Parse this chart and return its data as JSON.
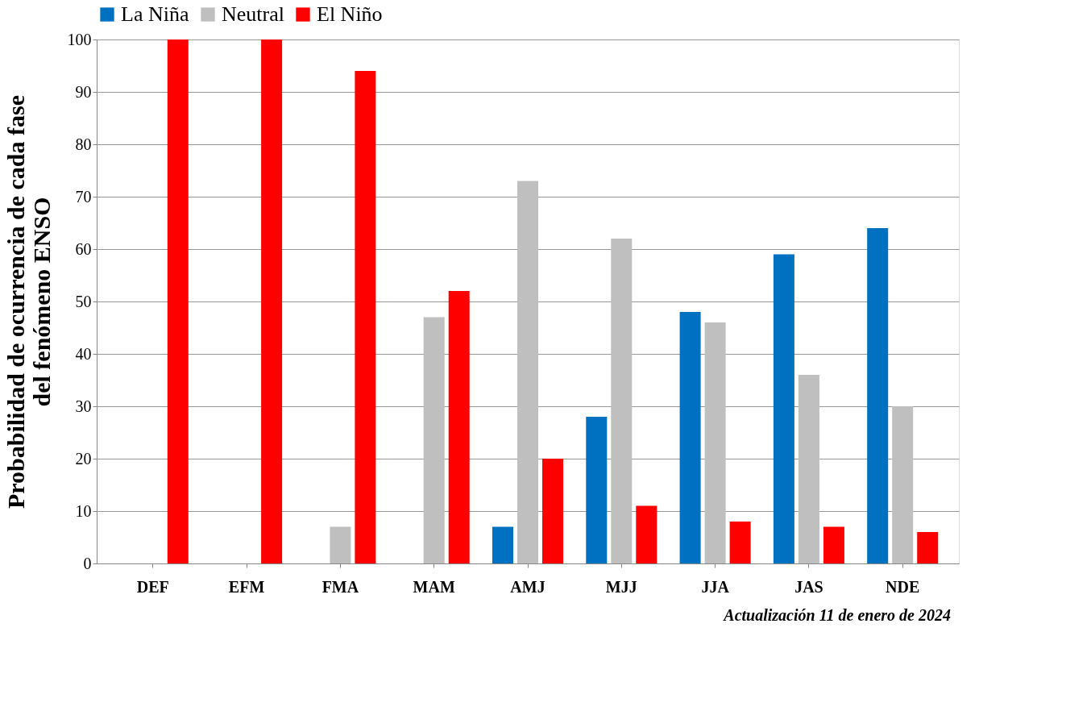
{
  "chart_data": {
    "type": "bar",
    "ylabel": "Probabilidad de ocurrencia  de cada fase\ndel fenómeno ENSO",
    "categories": [
      "DEF",
      "EFM",
      "FMA",
      "MAM",
      "AMJ",
      "MJJ",
      "JJA",
      "JAS",
      "NDE"
    ],
    "series": [
      {
        "name": "La Niña",
        "color": "#0070c0",
        "values": [
          0,
          0,
          0,
          0,
          7,
          28,
          48,
          59,
          64
        ]
      },
      {
        "name": "Neutral",
        "color": "#bfbfbf",
        "values": [
          0,
          0,
          7,
          47,
          73,
          62,
          46,
          36,
          30
        ]
      },
      {
        "name": "El Niño",
        "color": "#ff0000",
        "values": [
          100,
          100,
          94,
          52,
          20,
          11,
          8,
          7,
          6
        ]
      }
    ],
    "ylim": [
      0,
      100
    ],
    "yticks": [
      0,
      10,
      20,
      30,
      40,
      50,
      60,
      70,
      80,
      90,
      100
    ],
    "grid": "y",
    "legend": "top",
    "annotations": [
      "Actualización 11 de enero de 2024"
    ]
  }
}
